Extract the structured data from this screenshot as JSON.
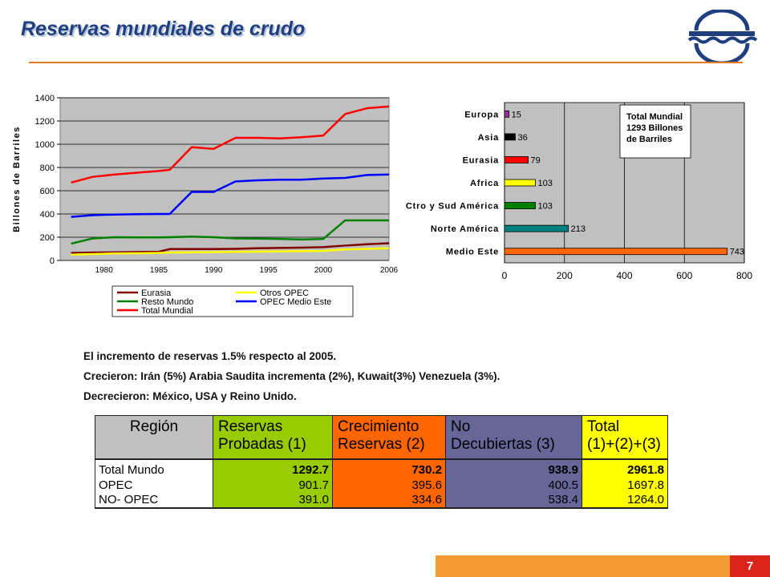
{
  "slide": {
    "title": "Reservas mundiales de crudo",
    "page_number": "7",
    "logo": "pdvsa-logo",
    "accent_color": "#e87a1e",
    "footer_colors": [
      "#f39c32",
      "#d9251c"
    ]
  },
  "bullets": [
    "El incremento de reservas 1.5% respecto al 2005.",
    "Crecieron: Irán (5%) Arabia Saudita incrementa (2%), Kuwait(3%) Venezuela (3%).",
    "Decrecieron: México, USA y Reino Unido."
  ],
  "chart_data": [
    {
      "type": "line",
      "title": "",
      "xlabel": "",
      "ylabel": "Billones de Barriles",
      "xlim": [
        1976,
        2006
      ],
      "ylim": [
        0,
        1400
      ],
      "x_ticks": [
        "1980",
        "1985",
        "1990",
        "1995",
        "2000",
        "2006"
      ],
      "y_ticks": [
        "0",
        "200",
        "400",
        "600",
        "800",
        "1000",
        "1200",
        "1400"
      ],
      "grid": true,
      "legend": "bottom",
      "plot_bg": "#c0c0c0",
      "x": [
        1977,
        1979,
        1981,
        1983,
        1985,
        1986,
        1988,
        1990,
        1992,
        1994,
        1996,
        1998,
        2000,
        2002,
        2004,
        2006
      ],
      "series": [
        {
          "name": "Eurasia",
          "color": "#800000",
          "values": [
            65,
            68,
            70,
            72,
            75,
            98,
            98,
            98,
            100,
            105,
            108,
            110,
            115,
            128,
            140,
            148
          ]
        },
        {
          "name": "Otros OPEC",
          "color": "#ffff00",
          "values": [
            50,
            55,
            60,
            62,
            65,
            68,
            70,
            72,
            74,
            76,
            78,
            80,
            82,
            95,
            100,
            105
          ]
        },
        {
          "name": "Resto Mundo",
          "color": "#008000",
          "values": [
            145,
            190,
            200,
            198,
            198,
            200,
            205,
            200,
            190,
            188,
            185,
            180,
            185,
            345,
            345,
            345
          ]
        },
        {
          "name": "OPEC Medio Este",
          "color": "#0000ff",
          "values": [
            375,
            390,
            395,
            398,
            400,
            400,
            590,
            590,
            680,
            690,
            695,
            695,
            705,
            710,
            735,
            740
          ]
        },
        {
          "name": "Total Mundial",
          "color": "#ff0000",
          "values": [
            670,
            720,
            740,
            755,
            770,
            780,
            975,
            960,
            1055,
            1055,
            1050,
            1060,
            1075,
            1260,
            1310,
            1325
          ]
        }
      ]
    },
    {
      "type": "bar",
      "orientation": "horizontal",
      "title": "",
      "xlim": [
        0,
        800
      ],
      "x_ticks": [
        "0",
        "200",
        "400",
        "600",
        "800"
      ],
      "grid": true,
      "plot_bg": "#c0c0c0",
      "categories": [
        "Europa",
        "Asia",
        "Eurasia",
        "Africa",
        "Ctro y Sud América",
        "Norte América",
        "Medio Este"
      ],
      "values": [
        15,
        36,
        79,
        103,
        103,
        213,
        743
      ],
      "value_labels": [
        "15",
        "36",
        "79",
        "103",
        "103",
        "213",
        "743"
      ],
      "colors": [
        "#993399",
        "#000000",
        "#ff0000",
        "#ffff00",
        "#008000",
        "#008080",
        "#ff6600"
      ],
      "annotation": [
        "Total Mundial",
        "1293 Billones",
        "de Barriles"
      ]
    }
  ],
  "table": {
    "headers": [
      {
        "lines": [
          "Región"
        ],
        "color": "#c0c0c0"
      },
      {
        "lines": [
          "Reservas",
          "Probadas (1)"
        ],
        "color": "#99cc00"
      },
      {
        "lines": [
          "Crecimiento",
          "Reservas (2)"
        ],
        "color": "#ff6600"
      },
      {
        "lines": [
          "No",
          "Decubiertas (3)"
        ],
        "color": "#666699"
      },
      {
        "lines": [
          "Total",
          "(1)+(2)+(3)"
        ],
        "color": "#ffff00"
      }
    ],
    "rows": [
      {
        "cells": [
          "Total Mundo",
          "1292.7",
          "730.2",
          "938.9",
          "2961.8"
        ]
      },
      {
        "cells": [
          "OPEC",
          "901.7",
          "395.6",
          "400.5",
          "1697.8"
        ]
      },
      {
        "cells": [
          "NO- OPEC",
          "391.0",
          "334.6",
          "538.4",
          "1264.0"
        ]
      }
    ]
  }
}
